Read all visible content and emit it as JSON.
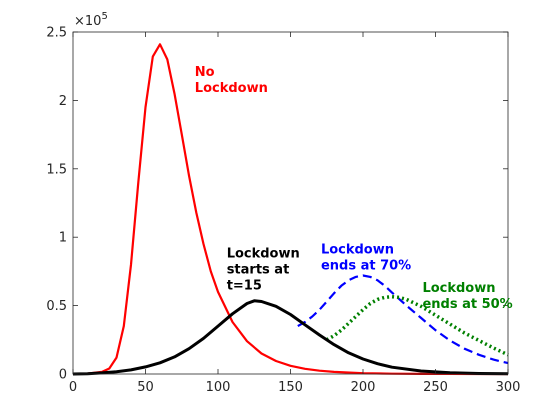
{
  "chart_data": {
    "type": "line",
    "title": "",
    "xlabel": "",
    "ylabel": "",
    "xlim": [
      0,
      300
    ],
    "ylim": [
      0,
      250000
    ],
    "y_exponent_label": "×10",
    "y_exponent_power": "5",
    "x_ticks": [
      {
        "value": 0,
        "label": "0"
      },
      {
        "value": 50,
        "label": "50"
      },
      {
        "value": 100,
        "label": "100"
      },
      {
        "value": 150,
        "label": "150"
      },
      {
        "value": 200,
        "label": "200"
      },
      {
        "value": 250,
        "label": "250"
      },
      {
        "value": 300,
        "label": "300"
      }
    ],
    "y_ticks": [
      {
        "value": 0,
        "label": "0"
      },
      {
        "value": 50000,
        "label": "0.5"
      },
      {
        "value": 100000,
        "label": "1"
      },
      {
        "value": 150000,
        "label": "1.5"
      },
      {
        "value": 200000,
        "label": "2"
      },
      {
        "value": 250000,
        "label": "2.5"
      }
    ],
    "grid": false,
    "series": [
      {
        "name": "No Lockdown",
        "color": "#ff0000",
        "dash": "solid",
        "x": [
          0,
          10,
          20,
          25,
          30,
          35,
          40,
          45,
          50,
          55,
          60,
          65,
          70,
          75,
          80,
          85,
          90,
          95,
          100,
          110,
          120,
          130,
          140,
          150,
          160,
          170,
          180,
          200,
          220,
          240,
          260,
          280,
          300
        ],
        "y": [
          0,
          300,
          1500,
          4000,
          12000,
          35000,
          80000,
          140000,
          195000,
          232000,
          241000,
          230000,
          205000,
          175000,
          145000,
          118000,
          95000,
          75000,
          60000,
          38000,
          24000,
          15000,
          9500,
          6000,
          3800,
          2400,
          1500,
          600,
          250,
          100,
          40,
          15,
          5
        ]
      },
      {
        "name": "Lockdown ends at 70%",
        "color": "#0000ff",
        "dash": "dashed",
        "x": [
          155,
          160,
          165,
          170,
          175,
          180,
          185,
          190,
          195,
          200,
          205,
          210,
          215,
          220,
          230,
          240,
          250,
          260,
          270,
          280,
          290,
          300
        ],
        "y": [
          35000,
          38000,
          42000,
          47000,
          53000,
          59000,
          64500,
          68500,
          71000,
          72000,
          71000,
          68500,
          64500,
          59500,
          50000,
          41000,
          32000,
          24500,
          18500,
          14000,
          10500,
          8000
        ]
      },
      {
        "name": "Lockdown ends at 50%",
        "color": "#008000",
        "dash": "dotted",
        "x": [
          175,
          180,
          185,
          190,
          195,
          200,
          205,
          210,
          215,
          220,
          225,
          230,
          240,
          250,
          260,
          270,
          280,
          290,
          300
        ],
        "y": [
          25000,
          28000,
          32000,
          37000,
          42000,
          47000,
          51500,
          54500,
          56000,
          56500,
          56000,
          54500,
          49500,
          43000,
          36500,
          30000,
          24500,
          19000,
          14000
        ]
      },
      {
        "name": "Lockdown starts at t=15",
        "color": "#000000",
        "dash": "solid",
        "x": [
          0,
          10,
          20,
          30,
          40,
          50,
          60,
          70,
          80,
          90,
          100,
          110,
          120,
          125,
          130,
          140,
          150,
          160,
          170,
          180,
          190,
          200,
          210,
          220,
          240,
          260,
          280,
          300
        ],
        "y": [
          0,
          200,
          800,
          1700,
          3000,
          5200,
          8200,
          12500,
          18500,
          26000,
          35000,
          44000,
          51500,
          53500,
          53000,
          49500,
          43500,
          36000,
          28500,
          21500,
          15500,
          11000,
          7500,
          5000,
          2200,
          900,
          350,
          130
        ]
      }
    ],
    "annotations": [
      {
        "series": "No Lockdown",
        "color": "#ff0000",
        "lines": [
          "No",
          "Lockdown"
        ],
        "x": 84,
        "y": 218000
      },
      {
        "series": "Lockdown starts at t=15",
        "color": "#000000",
        "lines": [
          "Lockdown",
          "starts at",
          "t=15"
        ],
        "x": 106,
        "y": 85000
      },
      {
        "series": "Lockdown ends at 70%",
        "color": "#0000ff",
        "lines": [
          "Lockdown",
          "ends at 70%"
        ],
        "x": 171,
        "y": 88000
      },
      {
        "series": "Lockdown ends at 50%",
        "color": "#008000",
        "lines": [
          "Lockdown",
          "ends at 50%"
        ],
        "x": 241,
        "y": 60000
      }
    ]
  }
}
